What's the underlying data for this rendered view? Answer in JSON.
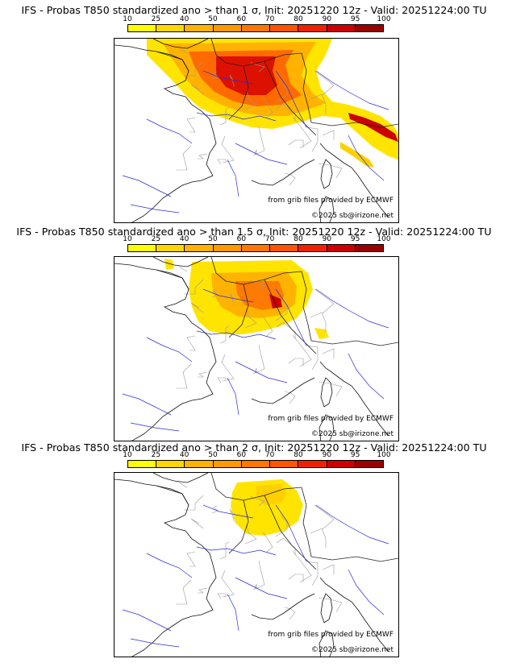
{
  "colorbar": {
    "ticks": [
      "10",
      "25",
      "40",
      "50",
      "60",
      "70",
      "80",
      "90",
      "95",
      "100"
    ],
    "colors": [
      "#ffff00",
      "#ffd700",
      "#ffb300",
      "#ff9900",
      "#ff7700",
      "#ff5500",
      "#ee2200",
      "#cc0000",
      "#990000"
    ]
  },
  "credits": {
    "line1": "from grib files provided by ECMWF",
    "line2": "©2025 sb@irizone.net"
  },
  "panels": [
    {
      "title": "IFS - Probas T850  standardized ano > than 1 σ, Init: 20251220 12z - Valid: 20251224:00 TU",
      "threshold": "1 σ"
    },
    {
      "title": "IFS - Probas T850  standardized ano > than 1.5 σ, Init: 20251220 12z - Valid: 20251224:00 TU",
      "threshold": "1.5 σ"
    },
    {
      "title": "IFS - Probas T850  standardized ano > than 2 σ, Init: 20251220 12z - Valid: 20251224:00 TU",
      "threshold": "2 σ"
    }
  ]
}
